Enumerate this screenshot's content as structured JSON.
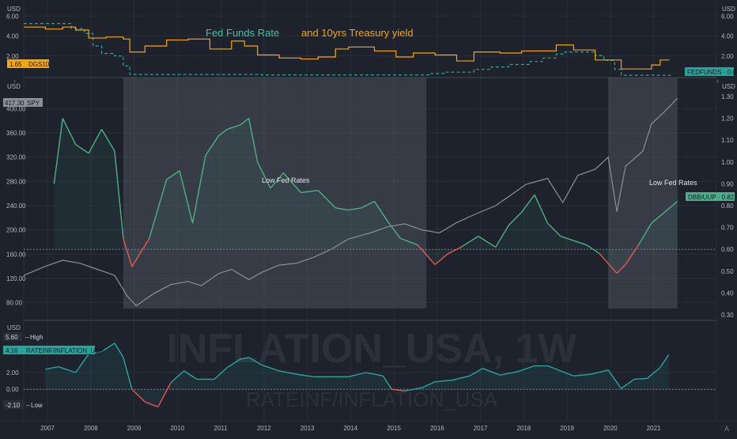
{
  "colors": {
    "background": "#1e222d",
    "grid": "#2a2e39",
    "axis_text": "#b2b5be",
    "fedfunds": "#26a69a",
    "dgs10": "#f7a600",
    "spy": "#8b8f99",
    "ratio_up": "#4caf87",
    "ratio_down": "#ef5350",
    "inflation": "#26a69a",
    "inflation_neg": "#ef5350",
    "shade": "#565a66",
    "title_teal": "#3ec3a6",
    "title_orange": "#f7a600"
  },
  "header": {
    "title_part1": "Fed Funds Rate",
    "title_part2": "and 10yrs Treasury yield"
  },
  "watermark": {
    "line1": "INFLATION_USA, 1W",
    "line2": "RATEINF/INFLATION_USA"
  },
  "x_axis": {
    "years": [
      "2007",
      "2008",
      "2009",
      "2010",
      "2011",
      "2012",
      "2013",
      "2014",
      "2015",
      "2016",
      "2017",
      "2018",
      "2019",
      "2020",
      "2021"
    ]
  },
  "corner": {
    "settings_glyph": "A"
  },
  "panes": {
    "rates": {
      "unit_left": "USD",
      "unit_right": "USD",
      "left_ticks": [
        "6.00",
        "4.00",
        "2.00"
      ],
      "right_ticks": [
        "6.00",
        "4.00",
        "2.00"
      ],
      "badge_dgs10": "1.65",
      "badge_dgs10_label": "DGS10",
      "badge_fedfunds": "FEDFUNDS · 0.07"
    },
    "price": {
      "unit_left": "USD",
      "unit_right": "USD",
      "left_ticks": [
        "400.00",
        "360.00",
        "320.00",
        "280.00",
        "240.00",
        "200.00",
        "160.00",
        "120.00",
        "80.00"
      ],
      "right_ticks": [
        "1.30",
        "1.20",
        "1.10",
        "1.00",
        "0.90",
        "0.80",
        "0.70",
        "0.60",
        "0.50",
        "0.40",
        "0.30"
      ],
      "badge_spy_value": "417.30",
      "badge_spy_label": "SPY",
      "badge_ratio": "DBB/UUP · 0.82",
      "annotation_1": "Low Fed Rates",
      "annotation_2": "Low Fed Rates"
    },
    "inflation": {
      "unit": "USD",
      "left_ticks": [
        "2.00",
        "0.00"
      ],
      "badge_high_value": "5.60",
      "badge_high_label": "High",
      "badge_last_value": "4.16",
      "badge_last_label": "RATEINF/INFLATION_USA",
      "badge_low_value": "-2.10",
      "badge_low_label": "Low"
    }
  },
  "chart_data": [
    {
      "type": "line",
      "title": "Fed Funds Rate and 10yrs Treasury yield",
      "x_range": [
        2006.5,
        2022.5
      ],
      "ylim": [
        0,
        6.5
      ],
      "series": [
        {
          "name": "FEDFUNDS",
          "x": [
            2006.5,
            2007.2,
            2007.6,
            2007.9,
            2008.1,
            2008.3,
            2008.6,
            2008.8,
            2008.95,
            2009.2,
            2012.0,
            2015.9,
            2016.2,
            2016.9,
            2017.3,
            2017.7,
            2018.2,
            2018.5,
            2018.8,
            2019.0,
            2019.5,
            2019.7,
            2019.9,
            2020.15,
            2020.3,
            2021.5
          ],
          "y": [
            5.25,
            5.25,
            4.75,
            4.25,
            3.0,
            2.25,
            2.0,
            1.0,
            0.15,
            0.15,
            0.1,
            0.24,
            0.38,
            0.66,
            0.9,
            1.15,
            1.45,
            1.8,
            2.2,
            2.4,
            2.4,
            2.05,
            1.55,
            0.65,
            0.07,
            0.07
          ]
        },
        {
          "name": "DGS10",
          "x": [
            2006.5,
            2007.0,
            2007.4,
            2007.7,
            2008.0,
            2008.4,
            2008.8,
            2008.95,
            2009.3,
            2009.8,
            2010.3,
            2010.8,
            2011.3,
            2011.6,
            2011.9,
            2012.4,
            2012.9,
            2013.3,
            2013.7,
            2014.0,
            2014.6,
            2015.1,
            2015.5,
            2016.0,
            2016.5,
            2016.9,
            2017.5,
            2018.0,
            2018.8,
            2019.2,
            2019.7,
            2020.1,
            2020.3,
            2020.7,
            2021.0,
            2021.2,
            2021.4
          ],
          "y": [
            4.9,
            4.7,
            4.9,
            4.6,
            3.8,
            3.9,
            3.7,
            2.4,
            3.0,
            3.6,
            3.7,
            2.7,
            3.5,
            3.0,
            2.1,
            1.8,
            1.7,
            1.9,
            2.7,
            2.9,
            2.5,
            1.9,
            2.3,
            2.1,
            1.5,
            2.4,
            2.3,
            2.5,
            3.1,
            2.6,
            1.6,
            1.6,
            0.7,
            0.7,
            1.1,
            1.6,
            1.65
          ]
        }
      ]
    },
    {
      "type": "line",
      "title": "",
      "x_range": [
        2006.5,
        2022.5
      ],
      "annotations": [
        "Low Fed Rates",
        "Low Fed Rates"
      ],
      "shaded_x_ranges": [
        [
          2008.8,
          2015.8
        ],
        [
          2020.0,
          2021.6
        ]
      ],
      "series": [
        {
          "name": "SPY",
          "axis": "left",
          "ylim": [
            60,
            420
          ],
          "x": [
            2006.5,
            2007.0,
            2007.4,
            2007.8,
            2008.2,
            2008.6,
            2008.9,
            2009.1,
            2009.5,
            2009.9,
            2010.3,
            2010.6,
            2011.0,
            2011.3,
            2011.7,
            2012.0,
            2012.4,
            2012.8,
            2013.2,
            2013.6,
            2014.0,
            2014.5,
            2014.9,
            2015.3,
            2015.7,
            2016.1,
            2016.5,
            2016.9,
            2017.4,
            2017.9,
            2018.1,
            2018.6,
            2018.95,
            2019.3,
            2019.7,
            2020.0,
            2020.2,
            2020.4,
            2020.8,
            2021.0,
            2021.3,
            2021.6
          ],
          "y": [
            125,
            140,
            150,
            145,
            135,
            125,
            90,
            75,
            95,
            110,
            115,
            108,
            128,
            135,
            118,
            130,
            142,
            145,
            155,
            168,
            185,
            195,
            205,
            210,
            200,
            195,
            212,
            225,
            240,
            265,
            275,
            285,
            245,
            290,
            300,
            320,
            230,
            305,
            330,
            375,
            395,
            417
          ]
        },
        {
          "name": "DBB/UUP",
          "axis": "right",
          "ylim": [
            0.3,
            1.3
          ],
          "x": [
            2007.2,
            2007.4,
            2007.7,
            2008.0,
            2008.3,
            2008.6,
            2008.8,
            2009.0,
            2009.4,
            2009.8,
            2010.1,
            2010.4,
            2010.7,
            2011.0,
            2011.2,
            2011.5,
            2011.7,
            2011.9,
            2012.2,
            2012.5,
            2012.9,
            2013.3,
            2013.7,
            2014.0,
            2014.3,
            2014.6,
            2014.9,
            2015.2,
            2015.6,
            2016.0,
            2016.3,
            2016.6,
            2017.0,
            2017.4,
            2017.7,
            2018.0,
            2018.3,
            2018.6,
            2018.9,
            2019.2,
            2019.5,
            2019.8,
            2020.2,
            2020.4,
            2020.7,
            2021.0,
            2021.3,
            2021.6
          ],
          "y": [
            0.9,
            1.2,
            1.08,
            1.04,
            1.15,
            1.05,
            0.65,
            0.52,
            0.65,
            0.92,
            0.96,
            0.72,
            1.03,
            1.12,
            1.15,
            1.17,
            1.2,
            1.0,
            0.88,
            0.95,
            0.86,
            0.87,
            0.79,
            0.78,
            0.79,
            0.82,
            0.73,
            0.65,
            0.62,
            0.53,
            0.58,
            0.61,
            0.66,
            0.61,
            0.71,
            0.77,
            0.85,
            0.72,
            0.66,
            0.64,
            0.62,
            0.58,
            0.49,
            0.53,
            0.62,
            0.72,
            0.77,
            0.82
          ]
        }
      ]
    },
    {
      "type": "area",
      "title": "INFLATION_USA, 1W",
      "x_range": [
        2006.5,
        2022.5
      ],
      "ylim": [
        -3,
        7
      ],
      "series": [
        {
          "name": "RATEINF/INFLATION_USA",
          "x": [
            2007.0,
            2007.3,
            2007.7,
            2008.0,
            2008.3,
            2008.6,
            2008.8,
            2009.0,
            2009.3,
            2009.6,
            2009.9,
            2010.2,
            2010.5,
            2010.9,
            2011.2,
            2011.5,
            2011.7,
            2012.0,
            2012.4,
            2012.8,
            2013.2,
            2013.6,
            2014.0,
            2014.4,
            2014.8,
            2015.0,
            2015.3,
            2015.7,
            2016.0,
            2016.4,
            2016.8,
            2017.1,
            2017.5,
            2017.9,
            2018.3,
            2018.6,
            2018.9,
            2019.2,
            2019.6,
            2020.0,
            2020.3,
            2020.6,
            2020.9,
            2021.2,
            2021.4
          ],
          "y": [
            2.4,
            2.7,
            2.0,
            4.2,
            4.5,
            5.5,
            3.8,
            0.0,
            -1.5,
            -2.1,
            0.8,
            2.2,
            1.2,
            1.2,
            2.6,
            3.6,
            3.8,
            2.9,
            2.2,
            1.8,
            1.5,
            1.5,
            1.5,
            2.0,
            1.6,
            0.0,
            -0.2,
            0.2,
            0.9,
            1.1,
            1.6,
            2.5,
            1.7,
            2.1,
            2.8,
            2.8,
            2.2,
            1.6,
            1.8,
            2.3,
            0.1,
            1.2,
            1.3,
            2.6,
            4.16
          ]
        }
      ]
    }
  ]
}
